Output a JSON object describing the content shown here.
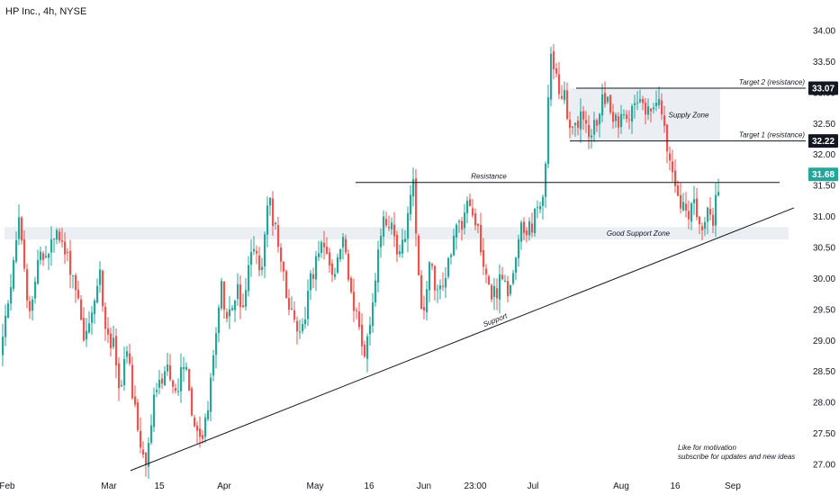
{
  "title": "HP Inc., 4h, NYSE",
  "chart_data": {
    "type": "candlestick",
    "symbol": "HP Inc.",
    "interval": "4h",
    "exchange": "NYSE",
    "y_ticks": [
      "34.00",
      "33.50",
      "33.00",
      "32.50",
      "32.00",
      "31.50",
      "31.00",
      "30.50",
      "30.00",
      "29.50",
      "29.00",
      "28.50",
      "28.00",
      "27.50",
      "27.00"
    ],
    "ylim": [
      26.95,
      34.2
    ],
    "x_labels": [
      "Feb",
      "Mar",
      "15",
      "Apr",
      "May",
      "16",
      "Jun",
      "23:00",
      "Jul",
      "Aug",
      "16",
      "Sep"
    ],
    "price_badges": [
      {
        "label": "33.07",
        "value": 33.07,
        "color": "#131722"
      },
      {
        "label": "32.22",
        "value": 32.22,
        "color": "#131722"
      },
      {
        "label": "31.68",
        "value": 31.68,
        "color": "#26a69a"
      }
    ],
    "price_path": [
      [
        0,
        28.8
      ],
      [
        8,
        29.6
      ],
      [
        15,
        30.5
      ],
      [
        20,
        30.9
      ],
      [
        26,
        30.0
      ],
      [
        33,
        29.5
      ],
      [
        40,
        30.2
      ],
      [
        50,
        30.4
      ],
      [
        62,
        30.7
      ],
      [
        75,
        30.3
      ],
      [
        85,
        29.8
      ],
      [
        92,
        29.1
      ],
      [
        100,
        29.3
      ],
      [
        110,
        30.1
      ],
      [
        118,
        29.0
      ],
      [
        125,
        28.9
      ],
      [
        132,
        28.2
      ],
      [
        140,
        28.8
      ],
      [
        148,
        27.9
      ],
      [
        156,
        27.2
      ],
      [
        162,
        27.0
      ],
      [
        168,
        27.9
      ],
      [
        176,
        28.3
      ],
      [
        186,
        28.5
      ],
      [
        196,
        28.2
      ],
      [
        204,
        28.7
      ],
      [
        212,
        27.7
      ],
      [
        220,
        27.5
      ],
      [
        228,
        27.6
      ],
      [
        236,
        28.8
      ],
      [
        245,
        29.8
      ],
      [
        255,
        29.3
      ],
      [
        263,
        29.8
      ],
      [
        270,
        29.4
      ],
      [
        278,
        30.5
      ],
      [
        288,
        30.1
      ],
      [
        298,
        31.3
      ],
      [
        303,
        30.9
      ],
      [
        310,
        30.3
      ],
      [
        318,
        29.7
      ],
      [
        326,
        29.3
      ],
      [
        334,
        29.2
      ],
      [
        342,
        29.8
      ],
      [
        350,
        30.3
      ],
      [
        360,
        30.5
      ],
      [
        370,
        30.0
      ],
      [
        380,
        30.7
      ],
      [
        390,
        29.7
      ],
      [
        398,
        29.2
      ],
      [
        404,
        28.7
      ],
      [
        412,
        29.4
      ],
      [
        420,
        30.7
      ],
      [
        428,
        31.0
      ],
      [
        436,
        30.8
      ],
      [
        444,
        30.3
      ],
      [
        452,
        31.0
      ],
      [
        458,
        31.5
      ],
      [
        464,
        30.2
      ],
      [
        468,
        29.2
      ],
      [
        472,
        29.9
      ],
      [
        478,
        30.3
      ],
      [
        486,
        29.6
      ],
      [
        494,
        30.1
      ],
      [
        502,
        30.6
      ],
      [
        512,
        30.9
      ],
      [
        520,
        31.2
      ],
      [
        528,
        31.0
      ],
      [
        536,
        30.3
      ],
      [
        542,
        29.9
      ],
      [
        548,
        29.7
      ],
      [
        556,
        30.0
      ],
      [
        564,
        29.8
      ],
      [
        572,
        30.3
      ],
      [
        580,
        30.9
      ],
      [
        588,
        30.8
      ],
      [
        596,
        31.1
      ],
      [
        604,
        31.5
      ],
      [
        608,
        33.0
      ],
      [
        612,
        33.7
      ],
      [
        618,
        33.2
      ],
      [
        624,
        33.0
      ],
      [
        630,
        32.6
      ],
      [
        638,
        32.4
      ],
      [
        646,
        32.6
      ],
      [
        654,
        32.2
      ],
      [
        662,
        32.6
      ],
      [
        670,
        33.0
      ],
      [
        680,
        32.7
      ],
      [
        690,
        32.5
      ],
      [
        700,
        32.6
      ],
      [
        710,
        32.8
      ],
      [
        720,
        32.7
      ],
      [
        728,
        33.0
      ],
      [
        736,
        32.6
      ],
      [
        740,
        32.0
      ],
      [
        746,
        31.7
      ],
      [
        752,
        31.2
      ],
      [
        758,
        31.4
      ],
      [
        764,
        30.9
      ],
      [
        770,
        31.2
      ],
      [
        778,
        30.9
      ],
      [
        784,
        31.1
      ],
      [
        790,
        30.9
      ],
      [
        796,
        31.4
      ],
      [
        800,
        31.68
      ]
    ],
    "zones": [
      {
        "label": "Supply Zone",
        "low": 32.22,
        "high": 33.07,
        "start_x": 633,
        "end_x": 800
      },
      {
        "label": "Good Support Zone",
        "low": 30.63,
        "high": 30.83,
        "start_x": 5,
        "end_x": 876
      }
    ],
    "lines": [
      {
        "label": "Resistance",
        "kind": "horizontal",
        "value": 31.55,
        "start_x": 395,
        "end_x": 866
      },
      {
        "label": "Target 2 (resistance)",
        "kind": "horizontal",
        "value": 33.07,
        "start_x": 640,
        "end_x": 895
      },
      {
        "label": "Target 1 (resistance)",
        "kind": "horizontal",
        "value": 32.22,
        "start_x": 633,
        "end_x": 895
      },
      {
        "label": "Support",
        "kind": "trend",
        "from": [
          145,
          26.9
        ],
        "to": [
          882,
          31.14
        ]
      }
    ],
    "note": [
      "Like for motivation",
      "subscribe for updates and new ideas"
    ]
  },
  "colors": {
    "up": "#26a69a",
    "down": "#ef5350",
    "line": "#131722",
    "zone": "#e8ebf0",
    "badge_current": "#26a69a"
  }
}
